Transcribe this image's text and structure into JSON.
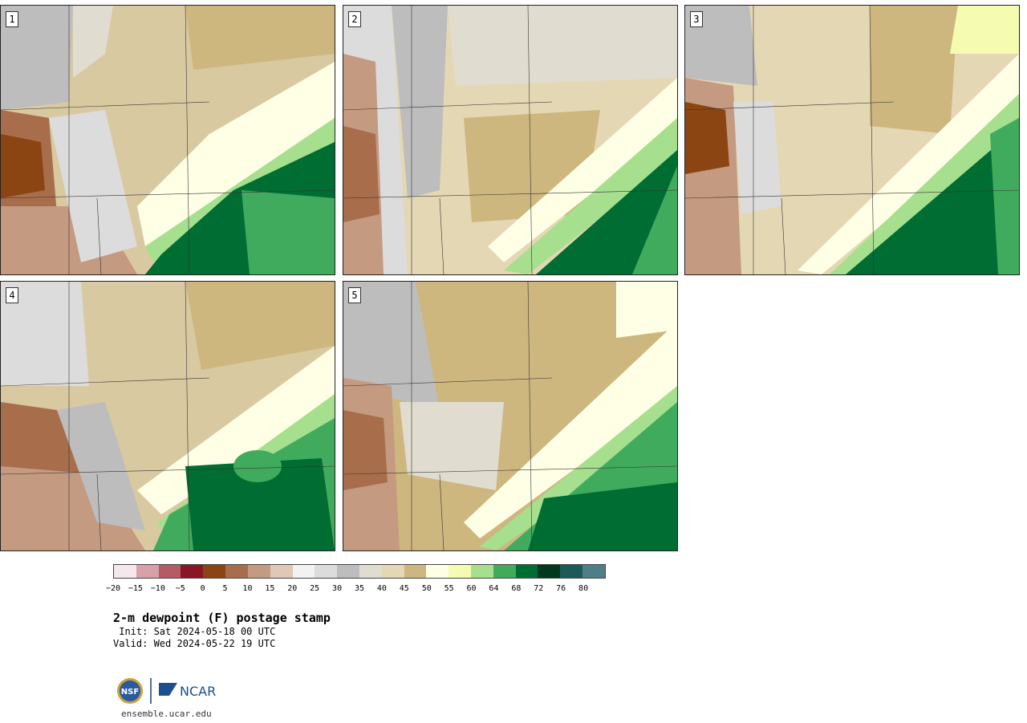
{
  "panels": [
    {
      "label": "1"
    },
    {
      "label": "2"
    },
    {
      "label": "3"
    },
    {
      "label": "4"
    },
    {
      "label": "5"
    }
  ],
  "colorbar": {
    "colors": [
      "#f5e8ec",
      "#d7a0aa",
      "#b65a63",
      "#8a1624",
      "#8b4513",
      "#a86e4b",
      "#c49a80",
      "#e0c8b8",
      "#f2f2f2",
      "#dcdcdc",
      "#bdbdbd",
      "#e0ddd0",
      "#e4d7b4",
      "#cdb77f",
      "#ffffe6",
      "#f5fbb0",
      "#a6df8e",
      "#41ab5d",
      "#006d33",
      "#00391d",
      "#1c5a5a",
      "#4f7f86"
    ],
    "ticks": [
      "−20",
      "−15",
      "−10",
      "−5",
      "0",
      "5",
      "10",
      "15",
      "20",
      "25",
      "30",
      "35",
      "40",
      "45",
      "50",
      "55",
      "60",
      "64",
      "68",
      "72",
      "76",
      "80"
    ]
  },
  "title": "2-m dewpoint (F) postage stamp",
  "init": " Init: Sat 2024-05-18 00 UTC",
  "valid": "Valid: Wed 2024-05-22 19 UTC",
  "logo": {
    "nsf": "NSF",
    "ncar": "NCAR"
  },
  "site": "ensemble.ucar.edu"
}
